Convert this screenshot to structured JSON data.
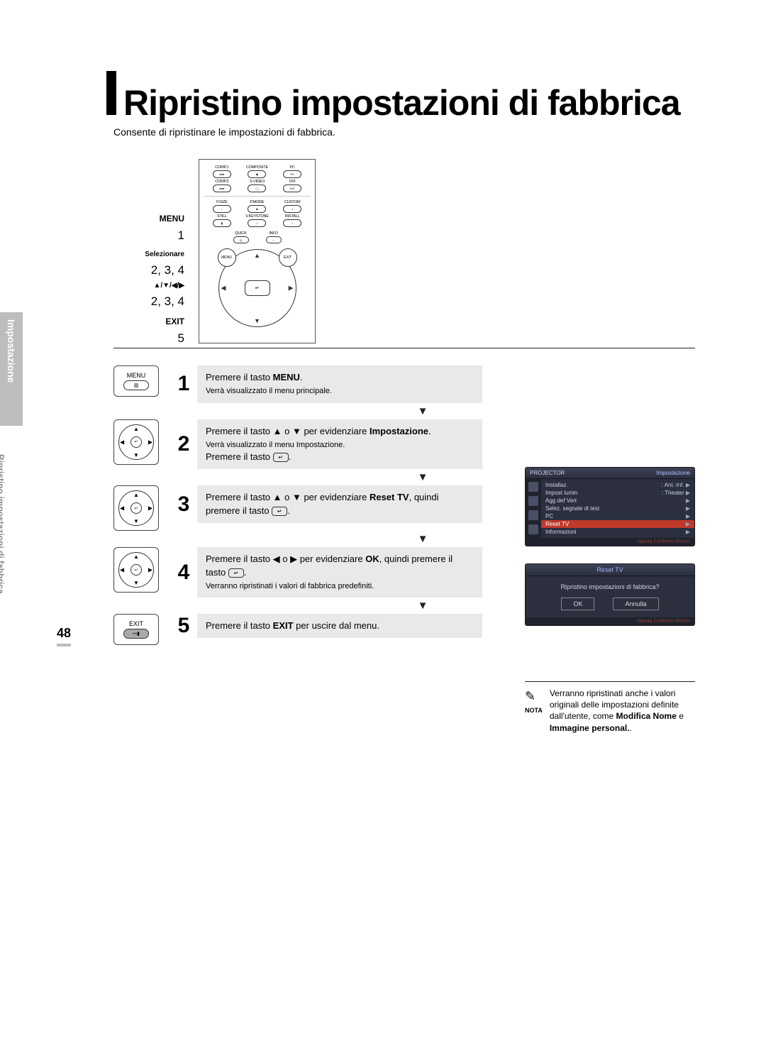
{
  "page_number": "48",
  "title": "Ripristino impostazioni di fabbrica",
  "subtitle": "Consente di ripristinare le impostazioni di fabbrica.",
  "side_tab": "Impostazione",
  "side_sub": "Ripristino impostazioni di fabbrica",
  "labels_col": {
    "menu": "MENU",
    "n1": "1",
    "sel": "Selezionare",
    "n234a": "2, 3, 4",
    "arrows": "▲/▼/◀/▶",
    "n234b": "2, 3, 4",
    "exit": "EXIT",
    "n5": "5"
  },
  "remote": {
    "row1": [
      {
        "lab": "COMP.1",
        "sym": "●●●"
      },
      {
        "lab": "COMPOSITE",
        "sym": "◉"
      },
      {
        "lab": "PC",
        "sym": "PC"
      }
    ],
    "row2": [
      {
        "lab": "COMP.2",
        "sym": "●●●"
      },
      {
        "lab": "S-VIDEO",
        "sym": "◯"
      },
      {
        "lab": "DVI",
        "sym": "DVI"
      }
    ],
    "row3": [
      {
        "lab": "P.SIZE",
        "sym": "↔"
      },
      {
        "lab": "P.MODE",
        "sym": "■"
      },
      {
        "lab": "CUSTOM",
        "sym": "◐"
      }
    ],
    "row4": [
      {
        "lab": "STILL",
        "sym": "▮"
      },
      {
        "lab": "V.KEYSTONE",
        "sym": "⌂"
      },
      {
        "lab": "INSTALL",
        "sym": "↕"
      }
    ],
    "quick": [
      {
        "lab": "QUICK",
        "sym": "Q"
      },
      {
        "lab": "INFO",
        "sym": "i"
      }
    ],
    "center": "↵",
    "corners": {
      "tl": "MENU",
      "tr": "EXIT"
    }
  },
  "steps": [
    {
      "icon_type": "menu",
      "icon_label": "MENU",
      "num": "1",
      "lines": [
        {
          "t": "Premere il tasto ",
          "bold": false
        },
        {
          "t": "MENU",
          "bold": true
        },
        {
          "t": ".",
          "bold": false
        }
      ],
      "sub": "Verrà visualizzato il menu principale."
    },
    {
      "icon_type": "nav",
      "num": "2",
      "lines": [
        {
          "t": "Premere il tasto ▲ o ▼ per evidenziare ",
          "bold": false
        },
        {
          "t": "Impostazione",
          "bold": true
        },
        {
          "t": ".",
          "bold": false
        }
      ],
      "sub": "Verrà visualizzato il menu Impostazione.",
      "extra": "Premere il tasto "
    },
    {
      "icon_type": "nav",
      "num": "3",
      "lines": [
        {
          "t": "Premere il tasto ▲ o ▼ per evidenziare ",
          "bold": false
        },
        {
          "t": "Reset TV",
          "bold": true
        },
        {
          "t": ", quindi premere il tasto ",
          "bold": false
        }
      ]
    },
    {
      "icon_type": "nav",
      "num": "4",
      "lines": [
        {
          "t": "Premere il tasto ◀ o ▶ per evidenziare ",
          "bold": false
        },
        {
          "t": "OK",
          "bold": true
        },
        {
          "t": ", quindi premere il tasto ",
          "bold": false
        }
      ],
      "sub": "Verranno ripristinati i valori di fabbrica predefiniti."
    },
    {
      "icon_type": "exit",
      "icon_label": "EXIT",
      "num": "5",
      "lines": [
        {
          "t": "Premere il tasto ",
          "bold": false
        },
        {
          "t": "EXIT",
          "bold": true
        },
        {
          "t": " per uscire dal menu.",
          "bold": false
        }
      ]
    }
  ],
  "enter_symbol": "↵",
  "osd1": {
    "head_left": "PROJECTOR",
    "head_right": "Impostazione",
    "rows": [
      {
        "label": "Installaz.",
        "val": ": Ant.-Inf."
      },
      {
        "label": "Impost lumin",
        "val": ": Theater"
      },
      {
        "label": "Agg def Vert",
        "val": ""
      },
      {
        "label": "Selez. segnale di test",
        "val": ""
      },
      {
        "label": "PC",
        "val": ""
      },
      {
        "label": "Reset TV",
        "val": "",
        "sel": true
      },
      {
        "label": "Informazioni",
        "val": ""
      }
    ],
    "foot": "Sposta     Confermi     Return"
  },
  "osd2": {
    "head": "Reset TV",
    "q": "Ripristino impostazioni di fabbrica?",
    "ok": "OK",
    "cancel": "Annulla",
    "foot": "Sposta     Confermi     Return"
  },
  "note": {
    "label": "NOTA",
    "text_pre": "Verranno ripristinati anche i valori originali delle impostazioni definite dall'utente, come ",
    "bold1": "Modifica Nome",
    "mid": " e ",
    "bold2": "Immagine personal.",
    "post": "."
  },
  "colors": {
    "step_bg": "#e9e9e9",
    "osd_bg": "#2b2f3e",
    "osd_text": "#d0d4e6",
    "osd_sel": "#c0392b",
    "side_tab": "#bdbdbd"
  }
}
